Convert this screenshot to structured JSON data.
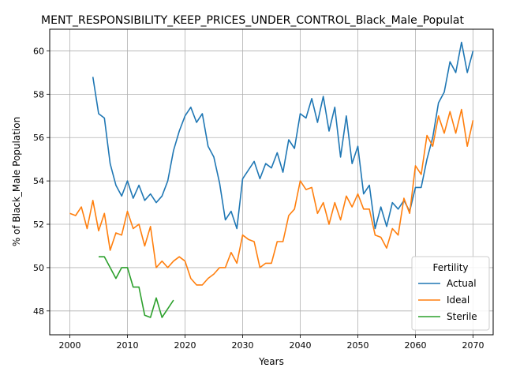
{
  "chart_data": {
    "type": "line",
    "title": "MENT_RESPONSIBILITY_KEEP_PRICES_UNDER_CONTROL_Black_Male_Populat",
    "xlabel": "Years",
    "ylabel": "% of Black_Male Population",
    "xlim": [
      1996.5,
      2073.5
    ],
    "ylim": [
      46.9,
      61.0
    ],
    "xticks": [
      2000,
      2010,
      2020,
      2030,
      2040,
      2050,
      2060,
      2070
    ],
    "yticks": [
      48,
      50,
      52,
      54,
      56,
      58,
      60
    ],
    "grid": true,
    "legend": {
      "title": "Fertility",
      "placement": "lower-right"
    },
    "series": [
      {
        "name": "Actual",
        "color": "#1f77b4",
        "x": [
          2004,
          2005,
          2006,
          2007,
          2008,
          2009,
          2010,
          2011,
          2012,
          2013,
          2014,
          2015,
          2016,
          2017,
          2018,
          2019,
          2020,
          2021,
          2022,
          2023,
          2024,
          2025,
          2026,
          2027,
          2028,
          2029,
          2030,
          2031,
          2032,
          2033,
          2034,
          2035,
          2036,
          2037,
          2038,
          2039,
          2040,
          2041,
          2042,
          2043,
          2044,
          2045,
          2046,
          2047,
          2048,
          2049,
          2050,
          2051,
          2052,
          2053,
          2054,
          2055,
          2056,
          2057,
          2058,
          2059,
          2060,
          2061,
          2062,
          2063,
          2064,
          2065,
          2066,
          2067,
          2068,
          2069,
          2070
        ],
        "y": [
          58.8,
          57.1,
          56.9,
          54.8,
          53.8,
          53.3,
          54.0,
          53.2,
          53.8,
          53.1,
          53.4,
          53.0,
          53.3,
          54.0,
          55.4,
          56.3,
          57.0,
          57.4,
          56.7,
          57.1,
          55.6,
          55.1,
          53.9,
          52.2,
          52.6,
          51.8,
          54.1,
          54.5,
          54.9,
          54.1,
          54.8,
          54.6,
          55.3,
          54.4,
          55.9,
          55.5,
          57.1,
          56.9,
          57.8,
          56.7,
          57.9,
          56.3,
          57.4,
          55.1,
          57.0,
          54.8,
          55.6,
          53.4,
          53.8,
          51.8,
          52.8,
          51.9,
          53.0,
          52.7,
          53.1,
          52.6,
          53.7,
          53.7,
          55.0,
          56.0,
          57.6,
          58.1,
          59.5,
          59.0,
          60.4,
          59.0,
          60.0
        ]
      },
      {
        "name": "Ideal",
        "color": "#ff7f0e",
        "x": [
          2000,
          2001,
          2002,
          2003,
          2004,
          2005,
          2006,
          2007,
          2008,
          2009,
          2010,
          2011,
          2012,
          2013,
          2014,
          2015,
          2016,
          2017,
          2018,
          2019,
          2020,
          2021,
          2022,
          2023,
          2024,
          2025,
          2026,
          2027,
          2028,
          2029,
          2030,
          2031,
          2032,
          2033,
          2034,
          2035,
          2036,
          2037,
          2038,
          2039,
          2040,
          2041,
          2042,
          2043,
          2044,
          2045,
          2046,
          2047,
          2048,
          2049,
          2050,
          2051,
          2052,
          2053,
          2054,
          2055,
          2056,
          2057,
          2058,
          2059,
          2060,
          2061,
          2062,
          2063,
          2064,
          2065,
          2066,
          2067,
          2068,
          2069,
          2070
        ],
        "y": [
          52.5,
          52.4,
          52.8,
          51.8,
          53.1,
          51.7,
          52.5,
          50.8,
          51.6,
          51.5,
          52.6,
          51.8,
          52.0,
          51.0,
          51.9,
          50.0,
          50.3,
          50.0,
          50.3,
          50.5,
          50.3,
          49.5,
          49.2,
          49.2,
          49.5,
          49.7,
          50.0,
          50.0,
          50.7,
          50.2,
          51.5,
          51.3,
          51.2,
          50.0,
          50.2,
          50.2,
          51.2,
          51.2,
          52.4,
          52.7,
          54.0,
          53.6,
          53.7,
          52.5,
          53.0,
          52.0,
          53.0,
          52.2,
          53.3,
          52.8,
          53.4,
          52.7,
          52.7,
          51.5,
          51.4,
          50.9,
          51.8,
          51.5,
          53.2,
          52.5,
          54.7,
          54.3,
          56.1,
          55.6,
          57.0,
          56.2,
          57.2,
          56.2,
          57.3,
          55.6,
          56.8
        ]
      },
      {
        "name": "Sterile",
        "color": "#2ca02c",
        "x": [
          2005,
          2006,
          2007,
          2008,
          2009,
          2010,
          2011,
          2012,
          2013,
          2014,
          2015,
          2016,
          2017,
          2018
        ],
        "y": [
          50.5,
          50.5,
          50.0,
          49.5,
          50.0,
          50.0,
          49.1,
          49.1,
          47.8,
          47.7,
          48.6,
          47.7,
          48.1,
          48.5
        ]
      }
    ]
  }
}
